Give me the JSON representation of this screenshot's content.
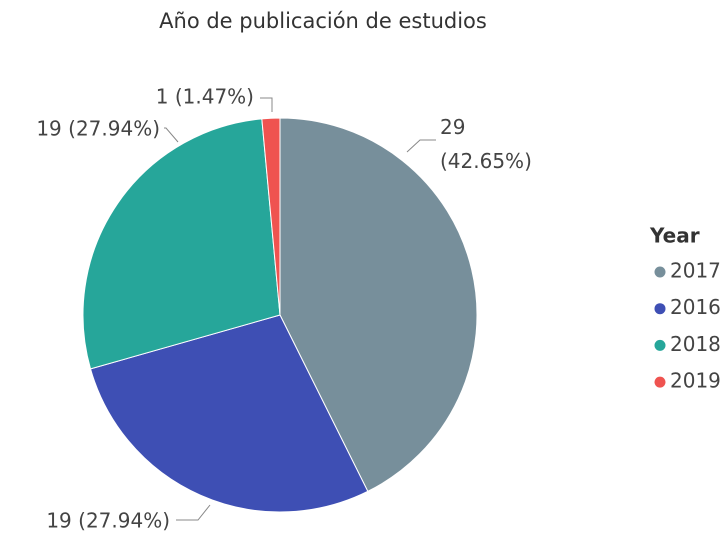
{
  "chart_data": {
    "type": "pie",
    "title": "Año de publicación de estudios",
    "legend_title": "Year",
    "legend": "right",
    "categories": [
      "2017",
      "2016",
      "2018",
      "2019"
    ],
    "values": [
      29,
      19,
      19,
      1
    ],
    "value_labels": [
      "29 (42.65%)",
      "19 (27.94%)",
      "19 (27.94%)",
      "1 (1.47%)"
    ],
    "colors": [
      "#778f9b",
      "#3e4fb4",
      "#26a69a",
      "#ef5350"
    ]
  }
}
